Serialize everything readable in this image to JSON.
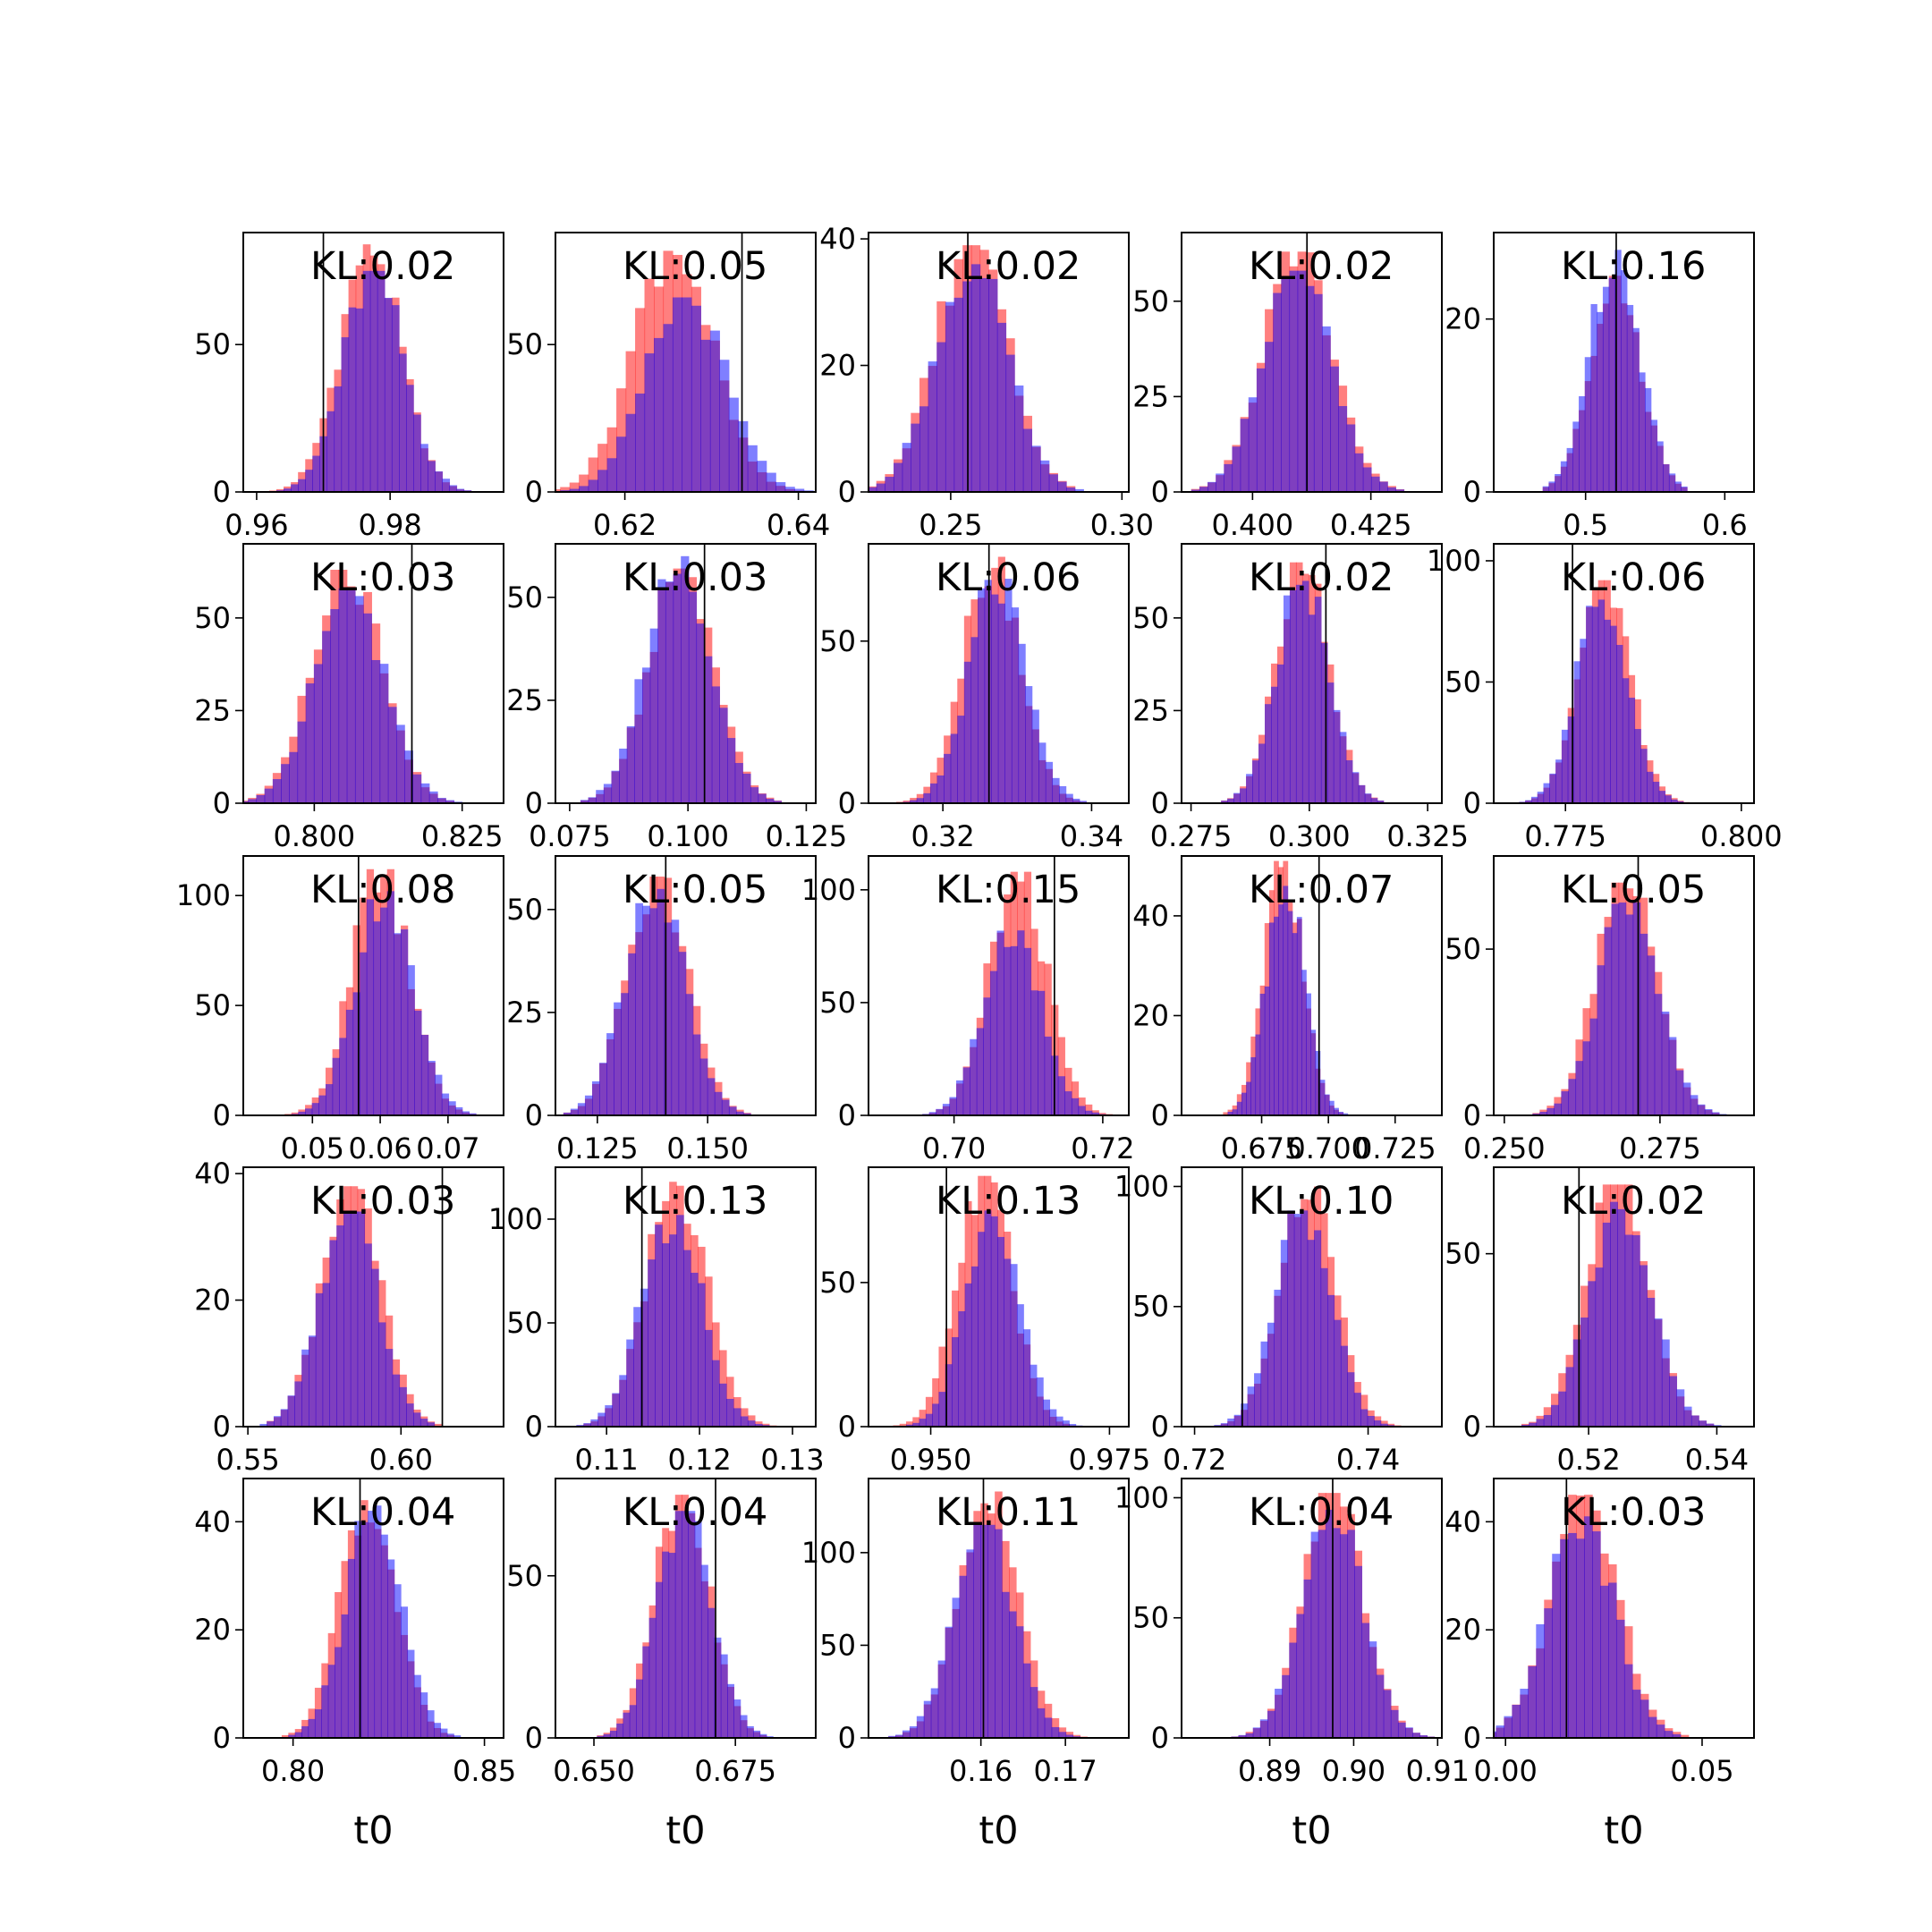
{
  "figure": {
    "colors": {
      "series_a": "#ff0000",
      "series_b": "#0000ff",
      "overlap": "#7f00bf",
      "reference_line": "#000000"
    },
    "xlabel": "t0"
  },
  "chart_data": [
    {
      "type": "histogram",
      "kl": "KL:0.02",
      "xlim": [
        0.958,
        0.997
      ],
      "ylim": [
        0,
        88
      ],
      "xticks": [
        0.96,
        0.98
      ],
      "xtick_labels": [
        "0.96",
        "0.98"
      ],
      "yticks": [
        0,
        50
      ],
      "ytick_labels": [
        "0",
        "50"
      ],
      "mean": 0.977,
      "sd": 0.0045,
      "peak_a": 84,
      "peak_b": 75,
      "offset_b": 0.0005,
      "ref_x": 0.97,
      "xlabel": ""
    },
    {
      "type": "histogram",
      "kl": "KL:0.05",
      "xlim": [
        0.612,
        0.642
      ],
      "ylim": [
        0,
        88
      ],
      "xticks": [
        0.62,
        0.64
      ],
      "xtick_labels": [
        "0.62",
        "0.64"
      ],
      "yticks": [
        0,
        50
      ],
      "ytick_labels": [
        "0",
        "50"
      ],
      "mean": 0.6255,
      "sd": 0.0045,
      "peak_a": 84,
      "peak_b": 66,
      "offset_b": 0.0015,
      "ref_x": 0.6335,
      "xlabel": ""
    },
    {
      "type": "histogram",
      "kl": "KL:0.02",
      "xlim": [
        0.226,
        0.302
      ],
      "ylim": [
        0,
        41
      ],
      "xticks": [
        0.25,
        0.3
      ],
      "xtick_labels": [
        "0.25",
        "0.30"
      ],
      "yticks": [
        0,
        20,
        40
      ],
      "ytick_labels": [
        "0",
        "20",
        "40"
      ],
      "mean": 0.256,
      "sd": 0.0105,
      "peak_a": 39,
      "peak_b": 36,
      "offset_b": 0.0,
      "ref_x": 0.255,
      "xlabel": ""
    },
    {
      "type": "histogram",
      "kl": "KL:0.02",
      "xlim": [
        0.385,
        0.44
      ],
      "ylim": [
        0,
        68
      ],
      "xticks": [
        0.4,
        0.425
      ],
      "xtick_labels": [
        "0.400",
        "0.425"
      ],
      "yticks": [
        0,
        25,
        50
      ],
      "ytick_labels": [
        "0",
        "25",
        "50"
      ],
      "mean": 0.4095,
      "sd": 0.0072,
      "peak_a": 63,
      "peak_b": 58,
      "offset_b": 0.0,
      "ref_x": 0.4115,
      "xlabel": ""
    },
    {
      "type": "histogram",
      "kl": "KL:0.16",
      "xlim": [
        0.434,
        0.621
      ],
      "ylim": [
        0,
        30
      ],
      "xticks": [
        0.5,
        0.6
      ],
      "xtick_labels": [
        "0.5",
        "0.6"
      ],
      "yticks": [
        0,
        20
      ],
      "ytick_labels": [
        "0",
        "20"
      ],
      "mean": 0.521,
      "sd": 0.018,
      "peak_a": 25,
      "peak_b": 28,
      "offset_b": 0.0,
      "ref_x": 0.522,
      "xlabel": ""
    },
    {
      "type": "histogram",
      "kl": "KL:0.03",
      "xlim": [
        0.788,
        0.832
      ],
      "ylim": [
        0,
        70
      ],
      "xticks": [
        0.8,
        0.825
      ],
      "xtick_labels": [
        "0.800",
        "0.825"
      ],
      "yticks": [
        0,
        25,
        50
      ],
      "ytick_labels": [
        "0",
        "25",
        "50"
      ],
      "mean": 0.8055,
      "sd": 0.0058,
      "peak_a": 63,
      "peak_b": 58,
      "offset_b": 0.0005,
      "ref_x": 0.8165,
      "xlabel": ""
    },
    {
      "type": "histogram",
      "kl": "KL:0.03",
      "xlim": [
        0.072,
        0.127
      ],
      "ylim": [
        0,
        63
      ],
      "xticks": [
        0.075,
        0.1,
        0.125
      ],
      "xtick_labels": [
        "0.075",
        "0.100",
        "0.125"
      ],
      "yticks": [
        0,
        25,
        50
      ],
      "ytick_labels": [
        "0",
        "25",
        "50"
      ],
      "mean": 0.0985,
      "sd": 0.0068,
      "peak_a": 57,
      "peak_b": 60,
      "offset_b": -0.0005,
      "ref_x": 0.1035,
      "xlabel": ""
    },
    {
      "type": "histogram",
      "kl": "KL:0.06",
      "xlim": [
        0.31,
        0.345
      ],
      "ylim": [
        0,
        80
      ],
      "xticks": [
        0.32,
        0.34
      ],
      "xtick_labels": [
        "0.32",
        "0.34"
      ],
      "yticks": [
        0,
        50
      ],
      "ytick_labels": [
        "0",
        "50"
      ],
      "mean": 0.3265,
      "sd": 0.0038,
      "peak_a": 76,
      "peak_b": 70,
      "offset_b": 0.0008,
      "ref_x": 0.3262,
      "xlabel": ""
    },
    {
      "type": "histogram",
      "kl": "KL:0.02",
      "xlim": [
        0.273,
        0.328
      ],
      "ylim": [
        0,
        70
      ],
      "xticks": [
        0.275,
        0.3,
        0.325
      ],
      "xtick_labels": [
        "0.275",
        "0.300",
        "0.325"
      ],
      "yticks": [
        0,
        25,
        50
      ],
      "ytick_labels": [
        "0",
        "25",
        "50"
      ],
      "mean": 0.2985,
      "sd": 0.0055,
      "peak_a": 65,
      "peak_b": 60,
      "offset_b": 0.0,
      "ref_x": 0.3035,
      "xlabel": ""
    },
    {
      "type": "histogram",
      "kl": "KL:0.06",
      "xlim": [
        0.7648,
        0.8018
      ],
      "ylim": [
        0,
        107
      ],
      "xticks": [
        0.775,
        0.8
      ],
      "xtick_labels": [
        "0.775",
        "0.800"
      ],
      "yticks": [
        0,
        50,
        100
      ],
      "ytick_labels": [
        "0",
        "50",
        "100"
      ],
      "mean": 0.7805,
      "sd": 0.0036,
      "peak_a": 92,
      "peak_b": 86,
      "offset_b": -0.0003,
      "ref_x": 0.776,
      "xlabel": ""
    },
    {
      "type": "histogram",
      "kl": "KL:0.08",
      "xlim": [
        0.0398,
        0.0782
      ],
      "ylim": [
        0,
        118
      ],
      "xticks": [
        0.05,
        0.06,
        0.07
      ],
      "xtick_labels": [
        "0.05",
        "0.06",
        "0.07"
      ],
      "yticks": [
        0,
        50,
        100
      ],
      "ytick_labels": [
        "0",
        "50",
        "100"
      ],
      "mean": 0.06,
      "sd": 0.0042,
      "peak_a": 112,
      "peak_b": 102,
      "offset_b": 0.0006,
      "ref_x": 0.0568,
      "xlabel": ""
    },
    {
      "type": "histogram",
      "kl": "KL:0.05",
      "xlim": [
        0.1155,
        0.1745
      ],
      "ylim": [
        0,
        63
      ],
      "xticks": [
        0.125,
        0.15
      ],
      "xtick_labels": [
        "0.125",
        "0.150"
      ],
      "yticks": [
        0,
        25,
        50
      ],
      "ytick_labels": [
        "0",
        "25",
        "50"
      ],
      "mean": 0.1385,
      "sd": 0.0068,
      "peak_a": 58,
      "peak_b": 55,
      "offset_b": -0.0005,
      "ref_x": 0.1405,
      "xlabel": ""
    },
    {
      "type": "histogram",
      "kl": "KL:0.15",
      "xlim": [
        0.6885,
        0.7235
      ],
      "ylim": [
        0,
        115
      ],
      "xticks": [
        0.7,
        0.72
      ],
      "xtick_labels": [
        "0.70",
        "0.72"
      ],
      "yticks": [
        0,
        50,
        100
      ],
      "ytick_labels": [
        "0",
        "50",
        "100"
      ],
      "mean": 0.7085,
      "sd": 0.0038,
      "peak_a": 108,
      "peak_b": 82,
      "offset_b": -0.0006,
      "ref_x": 0.7135,
      "xlabel": ""
    },
    {
      "type": "histogram",
      "kl": "KL:0.07",
      "xlim": [
        0.645,
        0.7425
      ],
      "ylim": [
        0,
        52
      ],
      "xticks": [
        0.675,
        0.7,
        0.725
      ],
      "xtick_labels": [
        "0.675",
        "0.700",
        "0.725"
      ],
      "yticks": [
        0,
        20,
        40
      ],
      "ytick_labels": [
        "0",
        "20",
        "40"
      ],
      "mean": 0.683,
      "sd": 0.0072,
      "peak_a": 51,
      "peak_b": 46,
      "offset_b": 0.001,
      "ref_x": 0.6965,
      "xlabel": ""
    },
    {
      "type": "histogram",
      "kl": "KL:0.05",
      "xlim": [
        0.2483,
        0.2901
      ],
      "ylim": [
        0,
        78
      ],
      "xticks": [
        0.25,
        0.275
      ],
      "xtick_labels": [
        "0.250",
        "0.275"
      ],
      "yticks": [
        0,
        50
      ],
      "ytick_labels": [
        "0",
        "50"
      ],
      "mean": 0.2695,
      "sd": 0.0048,
      "peak_a": 70,
      "peak_b": 64,
      "offset_b": 0.0004,
      "ref_x": 0.2715,
      "xlabel": ""
    },
    {
      "type": "histogram",
      "kl": "KL:0.03",
      "xlim": [
        0.5485,
        0.6335
      ],
      "ylim": [
        0,
        41
      ],
      "xticks": [
        0.55,
        0.6
      ],
      "xtick_labels": [
        "0.55",
        "0.60"
      ],
      "yticks": [
        0,
        20,
        40
      ],
      "ytick_labels": [
        "0",
        "20",
        "40"
      ],
      "mean": 0.5835,
      "sd": 0.0095,
      "peak_a": 38,
      "peak_b": 34,
      "offset_b": -0.0005,
      "ref_x": 0.6135,
      "xlabel": ""
    },
    {
      "type": "histogram",
      "kl": "KL:0.13",
      "xlim": [
        0.1045,
        0.1325
      ],
      "ylim": [
        0,
        125
      ],
      "xticks": [
        0.11,
        0.12,
        0.13
      ],
      "xtick_labels": [
        "0.11",
        "0.12",
        "0.13"
      ],
      "yticks": [
        0,
        50,
        100
      ],
      "ytick_labels": [
        "0",
        "50",
        "100"
      ],
      "mean": 0.1175,
      "sd": 0.0032,
      "peak_a": 118,
      "peak_b": 102,
      "offset_b": -0.0005,
      "ref_x": 0.1138,
      "xlabel": ""
    },
    {
      "type": "histogram",
      "kl": "KL:0.13",
      "xlim": [
        0.9413,
        0.9777
      ],
      "ylim": [
        0,
        90
      ],
      "xticks": [
        0.95,
        0.975
      ],
      "xtick_labels": [
        "0.950",
        "0.975"
      ],
      "yticks": [
        0,
        50
      ],
      "ytick_labels": [
        "0",
        "50"
      ],
      "mean": 0.9575,
      "sd": 0.0038,
      "peak_a": 87,
      "peak_b": 75,
      "offset_b": 0.0011,
      "ref_x": 0.9522,
      "xlabel": ""
    },
    {
      "type": "histogram",
      "kl": "KL:0.10",
      "xlim": [
        0.7185,
        0.7485
      ],
      "ylim": [
        0,
        108
      ],
      "xticks": [
        0.72,
        0.74
      ],
      "xtick_labels": [
        "0.72",
        "0.74"
      ],
      "yticks": [
        0,
        50,
        100
      ],
      "ytick_labels": [
        "0",
        "50",
        "100"
      ],
      "mean": 0.733,
      "sd": 0.0032,
      "peak_a": 100,
      "peak_b": 90,
      "offset_b": -0.0005,
      "ref_x": 0.7255,
      "xlabel": ""
    },
    {
      "type": "histogram",
      "kl": "KL:0.02",
      "xlim": [
        0.5052,
        0.5458
      ],
      "ylim": [
        0,
        75
      ],
      "xticks": [
        0.52,
        0.54
      ],
      "xtick_labels": [
        "0.52",
        "0.54"
      ],
      "yticks": [
        0,
        50
      ],
      "ytick_labels": [
        "0",
        "50"
      ],
      "mean": 0.5245,
      "sd": 0.0048,
      "peak_a": 70,
      "peak_b": 65,
      "offset_b": 0.0005,
      "ref_x": 0.5185,
      "xlabel": ""
    },
    {
      "type": "histogram",
      "kl": "KL:0.04",
      "xlim": [
        0.787,
        0.855
      ],
      "ylim": [
        0,
        48
      ],
      "xticks": [
        0.8,
        0.85
      ],
      "xtick_labels": [
        "0.80",
        "0.85"
      ],
      "yticks": [
        0,
        20,
        40
      ],
      "ytick_labels": [
        "0",
        "20",
        "40"
      ],
      "mean": 0.8195,
      "sd": 0.0072,
      "peak_a": 44,
      "peak_b": 43,
      "offset_b": 0.0015,
      "ref_x": 0.8175,
      "xlabel": "t0"
    },
    {
      "type": "histogram",
      "kl": "KL:0.04",
      "xlim": [
        0.6432,
        0.6892
      ],
      "ylim": [
        0,
        80
      ],
      "xticks": [
        0.65,
        0.675
      ],
      "xtick_labels": [
        "0.650",
        "0.675"
      ],
      "yticks": [
        0,
        50
      ],
      "ytick_labels": [
        "0",
        "50"
      ],
      "mean": 0.6655,
      "sd": 0.0048,
      "peak_a": 75,
      "peak_b": 70,
      "offset_b": 0.0005,
      "ref_x": 0.6715,
      "xlabel": "t0"
    },
    {
      "type": "histogram",
      "kl": "KL:0.11",
      "xlim": [
        0.1467,
        0.1775
      ],
      "ylim": [
        0,
        140
      ],
      "xticks": [
        0.16,
        0.17
      ],
      "xtick_labels": [
        "0.16",
        "0.17"
      ],
      "yticks": [
        0,
        50,
        100
      ],
      "ytick_labels": [
        "0",
        "50",
        "100"
      ],
      "mean": 0.1608,
      "sd": 0.0035,
      "peak_a": 133,
      "peak_b": 115,
      "offset_b": -0.0005,
      "ref_x": 0.1603,
      "xlabel": "t0"
    },
    {
      "type": "histogram",
      "kl": "KL:0.04",
      "xlim": [
        0.8795,
        0.9105
      ],
      "ylim": [
        0,
        108
      ],
      "xticks": [
        0.89,
        0.9,
        0.91
      ],
      "xtick_labels": [
        "0.89",
        "0.90",
        "0.91"
      ],
      "yticks": [
        0,
        50,
        100
      ],
      "ytick_labels": [
        "0",
        "50",
        "100"
      ],
      "mean": 0.8975,
      "sd": 0.0036,
      "peak_a": 102,
      "peak_b": 95,
      "offset_b": 0.0,
      "ref_x": 0.8975,
      "xlabel": "t0"
    },
    {
      "type": "histogram",
      "kl": "KL:0.03",
      "xlim": [
        -0.003,
        0.0632
      ],
      "ylim": [
        0,
        48
      ],
      "xticks": [
        0.0,
        0.05
      ],
      "xtick_labels": [
        "0.00",
        "0.05"
      ],
      "yticks": [
        0,
        20,
        40
      ],
      "ytick_labels": [
        "0",
        "20",
        "40"
      ],
      "mean": 0.02,
      "sd": 0.0085,
      "peak_a": 45,
      "peak_b": 41,
      "offset_b": -0.001,
      "ref_x": 0.0155,
      "xlabel": "t0"
    }
  ]
}
